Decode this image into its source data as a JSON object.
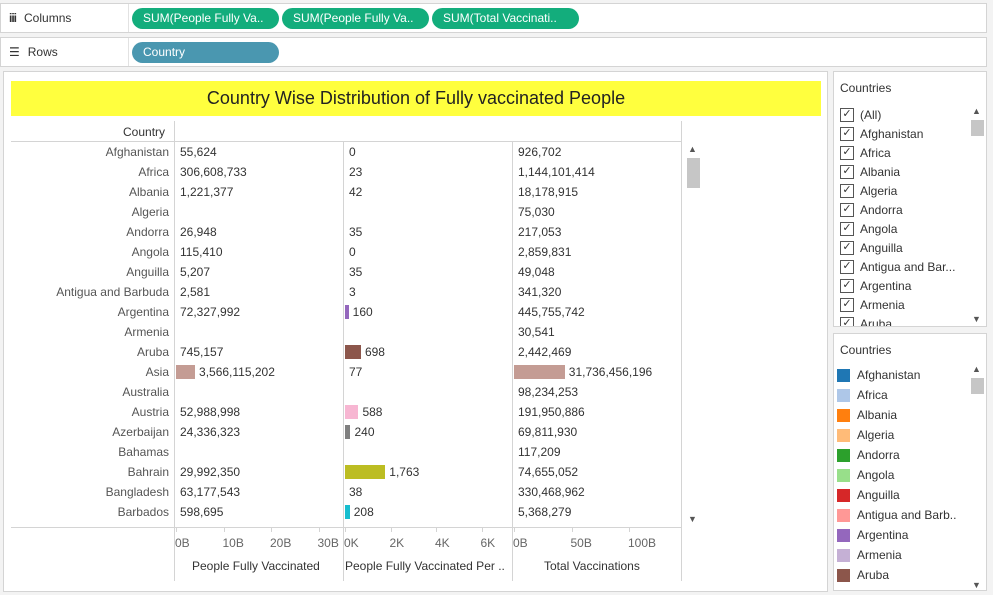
{
  "shelves": {
    "columns_label": "Columns",
    "rows_label": "Rows",
    "column_pills": [
      "SUM(People Fully Va..",
      "SUM(People Fully Va..",
      "SUM(Total Vaccinati.."
    ],
    "row_pills": [
      "Country"
    ]
  },
  "title": "Country Wise Distribution of Fully vaccinated People",
  "table": {
    "row_header": "Country",
    "columns": [
      "People Fully Vaccinated",
      "People Fully Vaccinated Per ..",
      "Total Vaccinations"
    ],
    "rows": [
      {
        "country": "Afghanistan",
        "pfv": "55,624",
        "pfvp": "0",
        "tv": "926,702"
      },
      {
        "country": "Africa",
        "pfv": "306,608,733",
        "pfvp": "23",
        "tv": "1,144,101,414"
      },
      {
        "country": "Albania",
        "pfv": "1,221,377",
        "pfvp": "42",
        "tv": "18,178,915"
      },
      {
        "country": "Algeria",
        "pfv": "",
        "pfvp": "",
        "tv": "75,030"
      },
      {
        "country": "Andorra",
        "pfv": "26,948",
        "pfvp": "35",
        "tv": "217,053"
      },
      {
        "country": "Angola",
        "pfv": "115,410",
        "pfvp": "0",
        "tv": "2,859,831"
      },
      {
        "country": "Anguilla",
        "pfv": "5,207",
        "pfvp": "35",
        "tv": "49,048"
      },
      {
        "country": "Antigua and Barbuda",
        "pfv": "2,581",
        "pfvp": "3",
        "tv": "341,320"
      },
      {
        "country": "Argentina",
        "pfv": "72,327,992",
        "pfvp": "160",
        "tv": "445,755,742"
      },
      {
        "country": "Armenia",
        "pfv": "",
        "pfvp": "",
        "tv": "30,541"
      },
      {
        "country": "Aruba",
        "pfv": "745,157",
        "pfvp": "698",
        "tv": "2,442,469"
      },
      {
        "country": "Asia",
        "pfv": "3,566,115,202",
        "pfvp": "77",
        "tv": "31,736,456,196"
      },
      {
        "country": "Australia",
        "pfv": "",
        "pfvp": "",
        "tv": "98,234,253"
      },
      {
        "country": "Austria",
        "pfv": "52,988,998",
        "pfvp": "588",
        "tv": "191,950,886"
      },
      {
        "country": "Azerbaijan",
        "pfv": "24,336,323",
        "pfvp": "240",
        "tv": "69,811,930"
      },
      {
        "country": "Bahamas",
        "pfv": "",
        "pfvp": "",
        "tv": "117,209"
      },
      {
        "country": "Bahrain",
        "pfv": "29,992,350",
        "pfvp": "1,763",
        "tv": "74,655,052"
      },
      {
        "country": "Bangladesh",
        "pfv": "63,177,543",
        "pfvp": "38",
        "tv": "330,468,962"
      },
      {
        "country": "Barbados",
        "pfv": "598,695",
        "pfvp": "208",
        "tv": "5,368,279"
      }
    ],
    "axes": {
      "pfv_ticks": [
        "0B",
        "10B",
        "20B",
        "30B"
      ],
      "pfvp_ticks": [
        "0K",
        "2K",
        "4K",
        "6K"
      ],
      "tv_ticks": [
        "0B",
        "50B",
        "100B"
      ]
    }
  },
  "chart_data": {
    "type": "bar",
    "categories": [
      "Afghanistan",
      "Africa",
      "Albania",
      "Algeria",
      "Andorra",
      "Angola",
      "Anguilla",
      "Antigua and Barbuda",
      "Argentina",
      "Armenia",
      "Aruba",
      "Asia",
      "Australia",
      "Austria",
      "Azerbaijan",
      "Bahamas",
      "Bahrain",
      "Bangladesh",
      "Barbados"
    ],
    "series": [
      {
        "name": "People Fully Vaccinated",
        "values": [
          55624,
          306608733,
          1221377,
          null,
          26948,
          115410,
          5207,
          2581,
          72327992,
          null,
          745157,
          3566115202,
          null,
          52988998,
          24336323,
          null,
          29992350,
          63177543,
          598695
        ],
        "xlim": [
          0,
          30000000000
        ]
      },
      {
        "name": "People Fully Vaccinated Per ..",
        "values": [
          0,
          23,
          42,
          null,
          35,
          0,
          35,
          3,
          160,
          null,
          698,
          77,
          null,
          588,
          240,
          null,
          1763,
          38,
          208
        ],
        "xlim": [
          0,
          7000
        ]
      },
      {
        "name": "Total Vaccinations",
        "values": [
          926702,
          1144101414,
          18178915,
          75030,
          217053,
          2859831,
          49048,
          341320,
          445755742,
          30541,
          2442469,
          31736456196,
          98234253,
          191950886,
          69811930,
          117209,
          74655052,
          330468962,
          5368279
        ],
        "xlim": [
          0,
          100000000000
        ]
      }
    ],
    "title": "Country Wise Distribution of Fully vaccinated People",
    "ylabel": "Country",
    "orientation": "horizontal"
  },
  "colors": {
    "Afghanistan": "#1f77b4",
    "Africa": "#aec7e8",
    "Albania": "#ff7f0e",
    "Algeria": "#ffbb78",
    "Andorra": "#2ca02c",
    "Angola": "#98df8a",
    "Anguilla": "#d62728",
    "Antigua and Barbuda": "#ff9896",
    "Argentina": "#9467bd",
    "Armenia": "#c5b0d5",
    "Aruba": "#8c564b",
    "Asia": "#c49c94",
    "Australia": "#e377c2",
    "Austria": "#f7b6d2",
    "Azerbaijan": "#7f7f7f",
    "Bahamas": "#c7c7c7",
    "Bahrain": "#bcbd22",
    "Bangladesh": "#dbdb8d",
    "Barbados": "#17becf"
  },
  "filter_panel": {
    "title": "Countries",
    "items": [
      "(All)",
      "Afghanistan",
      "Africa",
      "Albania",
      "Algeria",
      "Andorra",
      "Angola",
      "Anguilla",
      "Antigua and Bar...",
      "Argentina",
      "Armenia",
      "Aruba"
    ]
  },
  "legend_panel": {
    "title": "Countries",
    "items": [
      {
        "label": "Afghanistan",
        "color": "#1f77b4"
      },
      {
        "label": "Africa",
        "color": "#aec7e8"
      },
      {
        "label": "Albania",
        "color": "#ff7f0e"
      },
      {
        "label": "Algeria",
        "color": "#ffbb78"
      },
      {
        "label": "Andorra",
        "color": "#2ca02c"
      },
      {
        "label": "Angola",
        "color": "#98df8a"
      },
      {
        "label": "Anguilla",
        "color": "#d62728"
      },
      {
        "label": "Antigua and Barb..",
        "color": "#ff9896"
      },
      {
        "label": "Argentina",
        "color": "#9467bd"
      },
      {
        "label": "Armenia",
        "color": "#c5b0d5"
      },
      {
        "label": "Aruba",
        "color": "#8c564b"
      }
    ]
  }
}
